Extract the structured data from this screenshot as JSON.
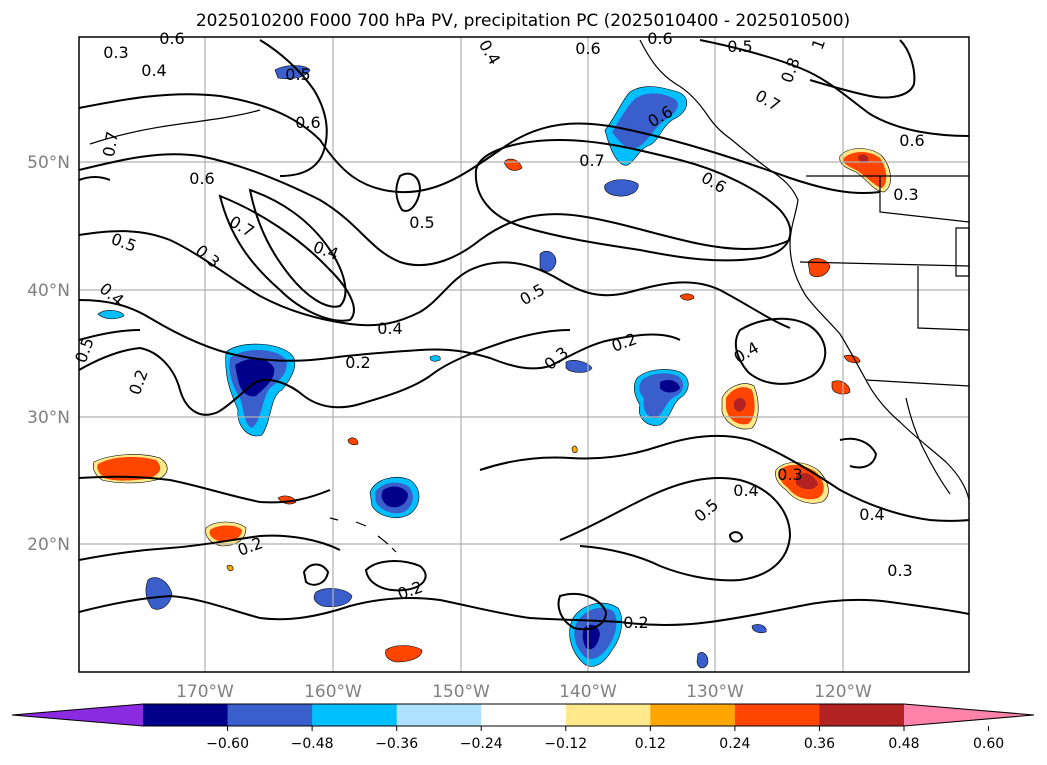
{
  "title": "2025010200 F000 700 hPa PV, precipitation PC (2025010400 - 2025010500)",
  "lat_labels": [
    "50°N",
    "40°N",
    "30°N",
    "20°N"
  ],
  "lon_labels": [
    "170°W",
    "160°W",
    "150°W",
    "140°W",
    "130°W",
    "120°W"
  ],
  "colorbar": {
    "ticks": [
      "−0.60",
      "−0.48",
      "−0.36",
      "−0.24",
      "−0.12",
      "0.12",
      "0.24",
      "0.36",
      "0.48",
      "0.60"
    ],
    "colors": [
      "#8a2be2",
      "#00008b",
      "#3a5fcd",
      "#00bfff",
      "#b0e2ff",
      "#ffffff",
      "#ffe98a",
      "#ffa500",
      "#ff4500",
      "#b22222",
      "#ff82ab"
    ]
  },
  "contour_labels": [
    "0.3",
    "0.4",
    "0.5",
    "0.6",
    "0.4",
    "0.6",
    "0.5",
    "0.7",
    "0.8",
    "1",
    "0.6",
    "0.7",
    "0.6",
    "0.5",
    "0.4",
    "0.6",
    "0.7",
    "0.5",
    "0.4",
    "0.3",
    "0.5",
    "0.7",
    "0.6",
    "0.4",
    "0.2",
    "0.2",
    "0.5",
    "0.3",
    "0.2",
    "0.4",
    "0.3",
    "0.4",
    "0.5",
    "0.4",
    "0.2",
    "0.2",
    "0.2",
    "0.3",
    "0.6",
    "0.6",
    "0.3"
  ]
}
